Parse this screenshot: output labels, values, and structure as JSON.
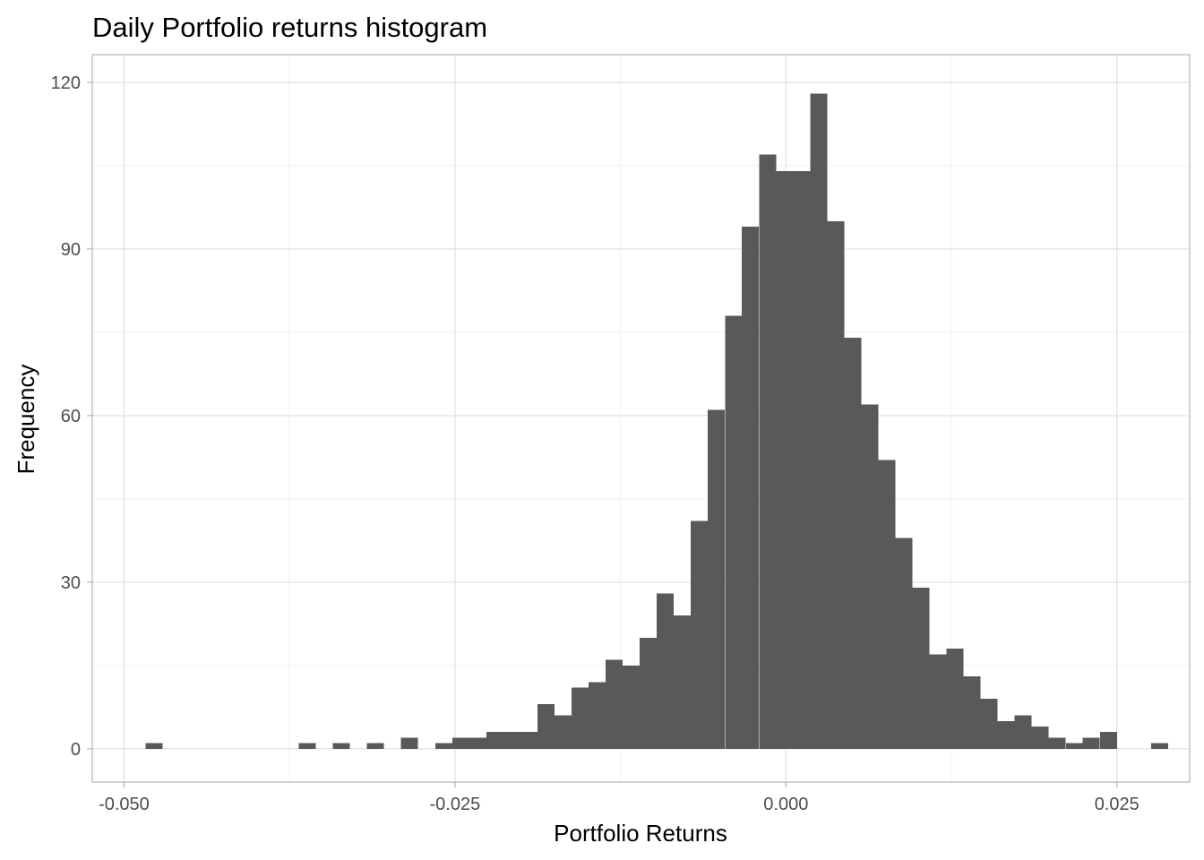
{
  "chart_data": {
    "type": "bar",
    "title": "Daily Portfolio returns histogram",
    "xlabel": "Portfolio Returns",
    "ylabel": "Frequency",
    "xlim": [
      -0.0524,
      0.0305
    ],
    "ylim": [
      -6,
      125
    ],
    "x_ticks": [
      -0.05,
      -0.025,
      0.0,
      0.025
    ],
    "x_tick_labels": [
      "-0.050",
      "-0.025",
      "0.000",
      "0.025"
    ],
    "y_ticks": [
      0,
      30,
      60,
      90,
      120
    ],
    "y_tick_labels": [
      "0",
      "30",
      "60",
      "90",
      "120"
    ],
    "grid": true,
    "bar_color": "#595959",
    "bin_width": 0.001287,
    "bin_centers": [
      -0.04774,
      -0.04645,
      -0.04516,
      -0.04388,
      -0.04259,
      -0.0413,
      -0.04001,
      -0.03873,
      -0.03744,
      -0.03615,
      -0.03486,
      -0.03358,
      -0.03229,
      -0.031,
      -0.02971,
      -0.02843,
      -0.02714,
      -0.02585,
      -0.02456,
      -0.02328,
      -0.02199,
      -0.0207,
      -0.01941,
      -0.01813,
      -0.01684,
      -0.01555,
      -0.01426,
      -0.01298,
      -0.01169,
      -0.0104,
      -0.00911,
      -0.00783,
      -0.00654,
      -0.00525,
      -0.00396,
      -0.00268,
      -0.00139,
      -0.0001,
      0.00119,
      0.00247,
      0.00376,
      0.00505,
      0.00634,
      0.00762,
      0.00891,
      0.0102,
      0.01149,
      0.01277,
      0.01406,
      0.01535,
      0.01664,
      0.01792,
      0.01921,
      0.0205,
      0.02179,
      0.02307,
      0.02436,
      0.02565,
      0.02694,
      0.02822
    ],
    "counts": [
      1,
      0,
      0,
      0,
      0,
      0,
      0,
      0,
      0,
      1,
      0,
      1,
      0,
      1,
      0,
      2,
      0,
      1,
      2,
      2,
      3,
      3,
      3,
      8,
      6,
      11,
      12,
      16,
      15,
      20,
      28,
      24,
      41,
      61,
      78,
      94,
      107,
      104,
      104,
      118,
      95,
      74,
      62,
      52,
      38,
      29,
      17,
      18,
      13,
      9,
      5,
      6,
      4,
      2,
      1,
      2,
      3,
      0,
      0,
      1
    ]
  }
}
